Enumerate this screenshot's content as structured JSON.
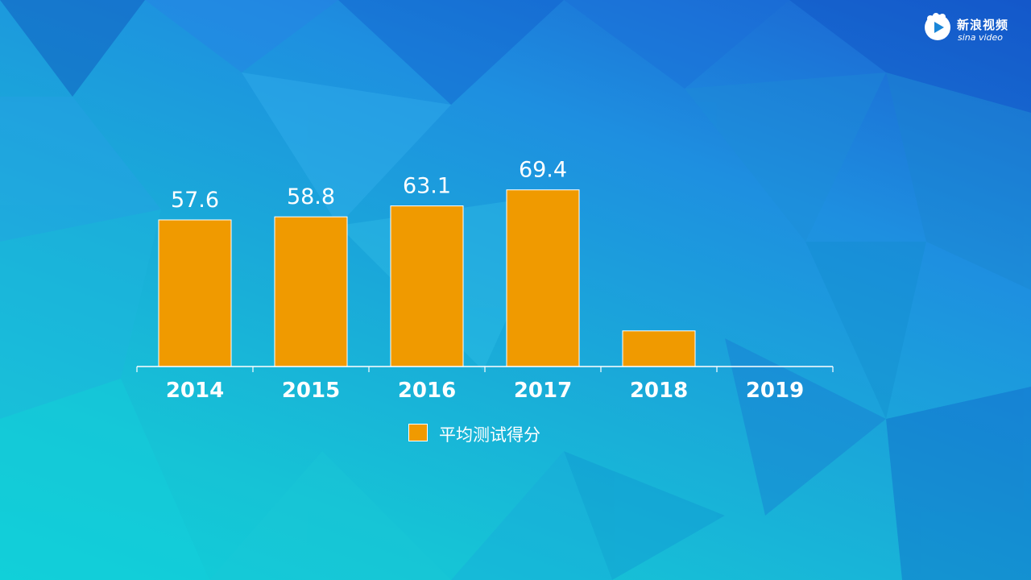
{
  "brand": {
    "name_cn": "新浪视频",
    "name_en": "sina video"
  },
  "chart_data": {
    "type": "bar",
    "categories": [
      "2014",
      "2015",
      "2016",
      "2017",
      "2018",
      "2019"
    ],
    "series": [
      {
        "name": "平均测试得分",
        "values": [
          57.6,
          58.8,
          63.1,
          69.4,
          14,
          null
        ],
        "data_labels": [
          "57.6",
          "58.8",
          "63.1",
          "69.4",
          "",
          ""
        ],
        "color": "#F09A00"
      }
    ],
    "title": "",
    "xlabel": "",
    "ylabel": "",
    "ylim": [
      0,
      80
    ],
    "grid": false,
    "legend": "bottom-center"
  },
  "colors": {
    "bar": "#F09A00",
    "text": "#FFFFFF",
    "axis": "#FFFFFF"
  }
}
